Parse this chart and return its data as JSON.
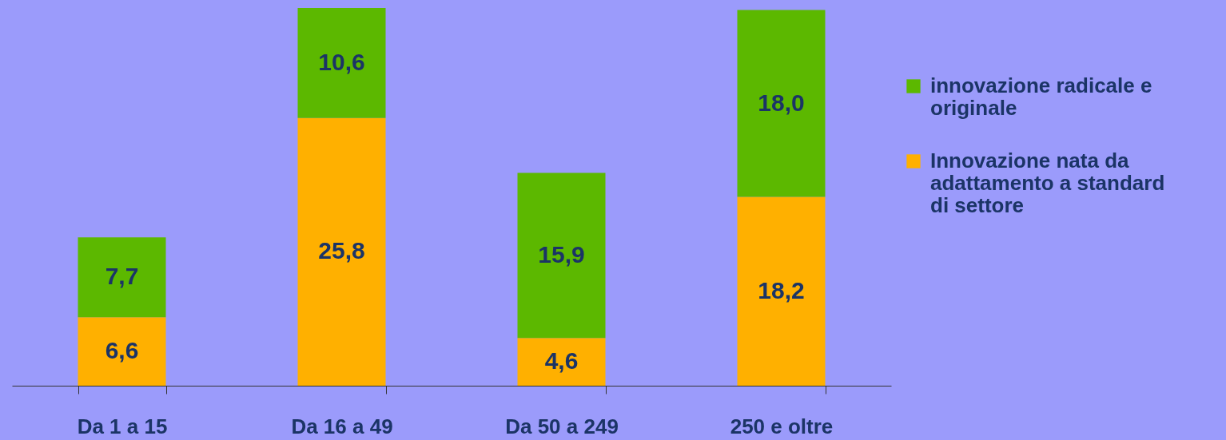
{
  "chart_data": {
    "type": "bar",
    "stacked": true,
    "categories": [
      "Da 1 a 15",
      "Da 16 a 49",
      "Da 50 a 249",
      "250 e  oltre"
    ],
    "series": [
      {
        "name": "Innovazione nata da adattamento a standard di settore",
        "color": "#ffb000",
        "values": [
          6.6,
          25.8,
          4.6,
          18.2
        ],
        "value_labels": [
          "6,6",
          "25,8",
          "4,6",
          "18,2"
        ]
      },
      {
        "name": "innovazione radicale e originale",
        "color": "#5cb800",
        "values": [
          7.7,
          10.6,
          15.9,
          18.0
        ],
        "value_labels": [
          "7,7",
          "10,6",
          "15,9",
          "18,0"
        ]
      }
    ],
    "legend": "right"
  }
}
